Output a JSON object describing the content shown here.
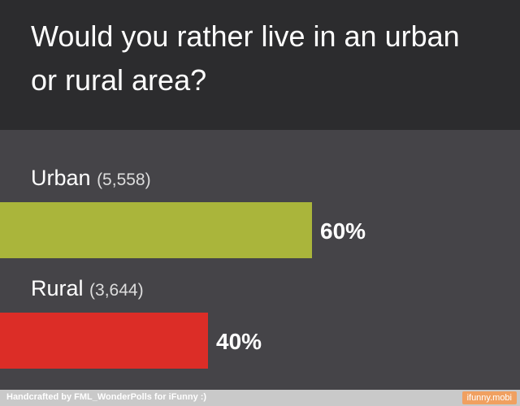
{
  "chart_data": {
    "type": "bar",
    "orientation": "horizontal",
    "title": "Would you rather live in an urban or rural area?",
    "categories": [
      "Urban",
      "Rural"
    ],
    "count_labels": [
      "(5,558)",
      "(3,644)"
    ],
    "values": [
      60,
      40
    ],
    "value_labels": [
      "60%",
      "40%"
    ],
    "colors": [
      "#aab53b",
      "#dc2d27"
    ],
    "xlim": [
      0,
      100
    ],
    "footer": "Handcrafted by FML_WonderPolls for iFunny :)",
    "badge": "ifunny.mobi"
  }
}
